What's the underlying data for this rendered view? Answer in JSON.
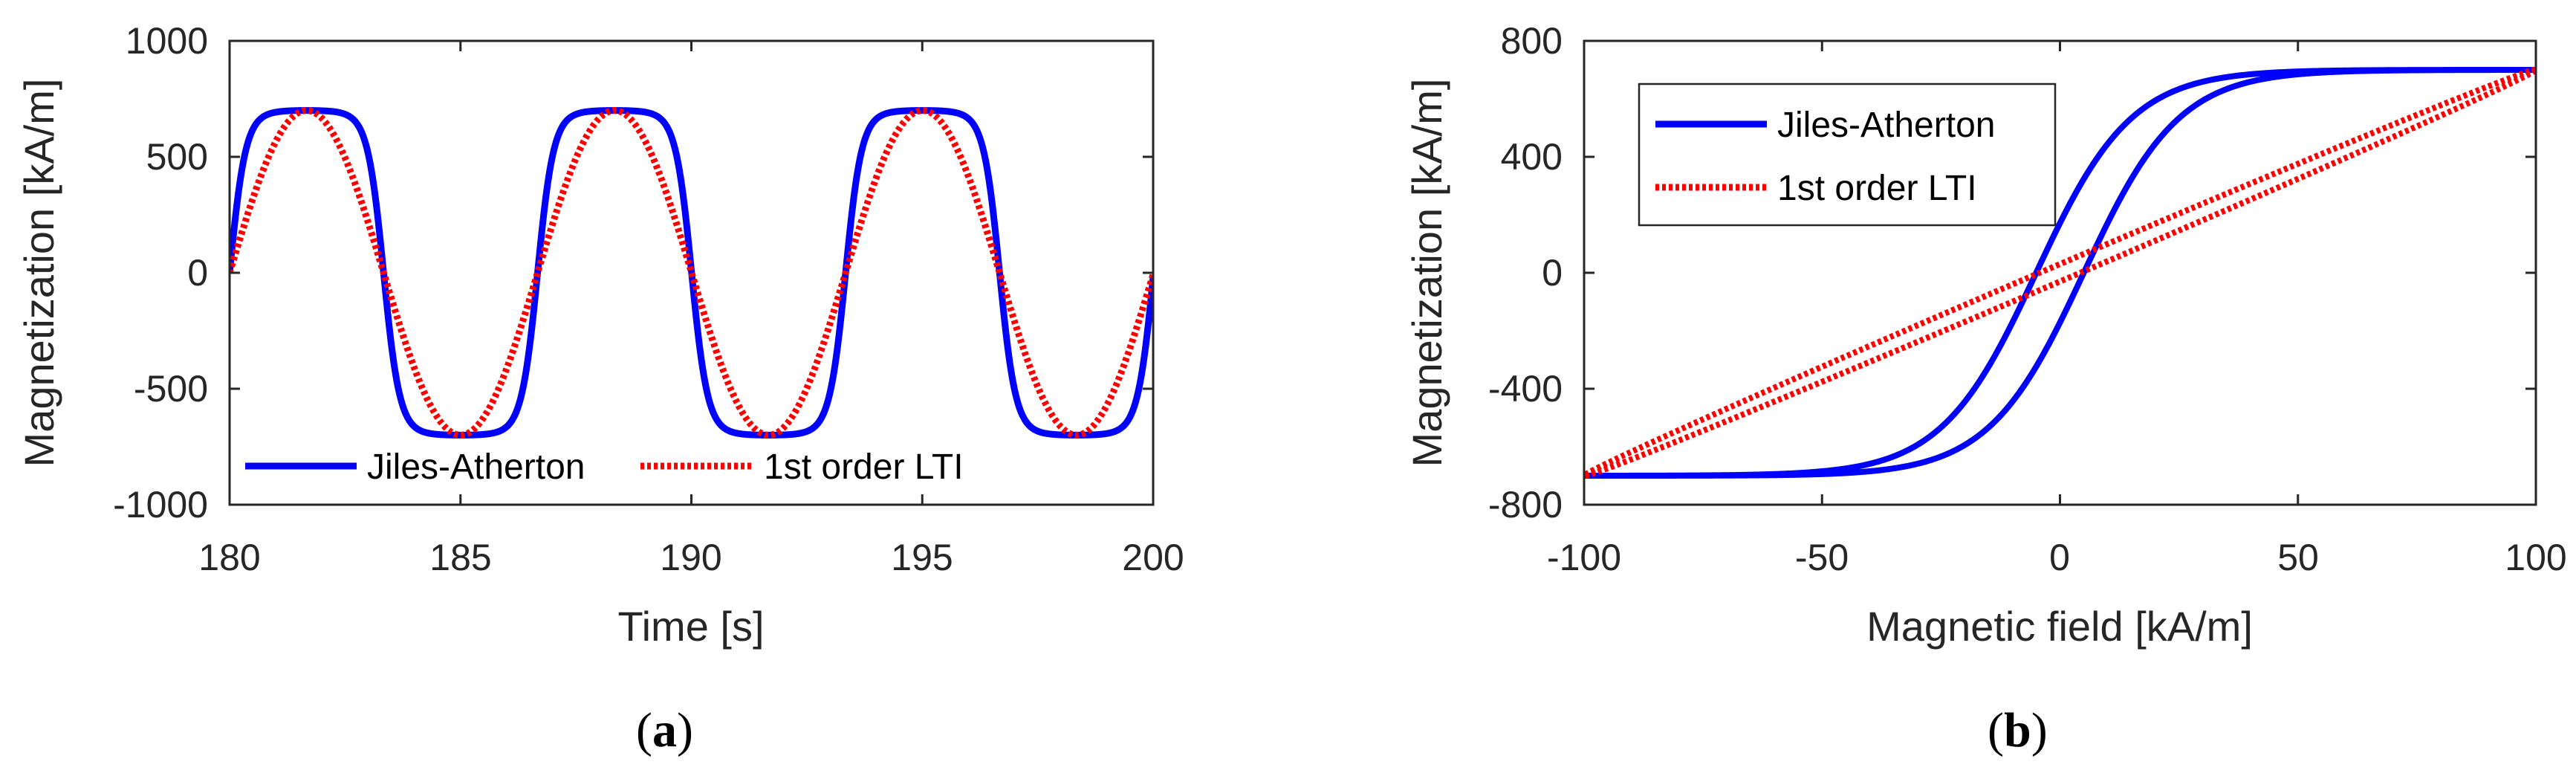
{
  "chart_data": [
    {
      "type": "line",
      "panel_label": "a",
      "xlabel": "Time [s]",
      "ylabel": "Magnetization [kA/m]",
      "xlim": [
        180,
        200
      ],
      "ylim": [
        -1000,
        1000
      ],
      "xticks": [
        "180",
        "185",
        "190",
        "195",
        "200"
      ],
      "yticks": [
        "-1000",
        "-500",
        "0",
        "500",
        "1000"
      ],
      "legend_position": "bottom-center",
      "series": [
        {
          "name": "Jiles-Atherton",
          "color": "#0000ff",
          "style": "solid",
          "description": "saturating wave, amplitude 700 kA/m, period 6.67 s, zero crossing at 180 s rising",
          "amplitude": 700,
          "period": 6.67,
          "phase_zero_time": 180.0
        },
        {
          "name": "1st order LTI",
          "color": "#ff0000",
          "style": "dotted",
          "description": "sinusoid, amplitude 700 kA/m, period 6.67 s, zero crossing at 180 s rising",
          "amplitude": 700,
          "period": 6.67,
          "phase_zero_time": 180.0
        }
      ]
    },
    {
      "type": "line",
      "panel_label": "b",
      "xlabel": "Magnetic field [kA/m]",
      "ylabel": "Magnetization [kA/m]",
      "xlim": [
        -100,
        100
      ],
      "ylim": [
        -800,
        800
      ],
      "xticks": [
        "-100",
        "-50",
        "0",
        "50",
        "100"
      ],
      "yticks": [
        "-800",
        "-400",
        "0",
        "400",
        "800"
      ],
      "legend_position": "top-left",
      "series": [
        {
          "name": "Jiles-Atherton",
          "color": "#0000ff",
          "style": "solid",
          "description": "sigmoidal hysteresis loop from (-100,-700) to (100,700), coercive field about 5 kA/m",
          "x_range": [
            -100,
            100
          ],
          "y_end": 700,
          "coercive_field": 5
        },
        {
          "name": "1st order LTI",
          "color": "#ff0000",
          "style": "dotted",
          "description": "narrow linear elliptical loop from (-100,-700) to (100,700)",
          "x_range": [
            -100,
            100
          ],
          "y_end": 700,
          "loop_half_width_y": 30
        }
      ]
    }
  ],
  "captions": {
    "a_open": "(",
    "a_letter": "a",
    "a_close": ")",
    "b_open": "(",
    "b_letter": "b",
    "b_close": ")"
  }
}
